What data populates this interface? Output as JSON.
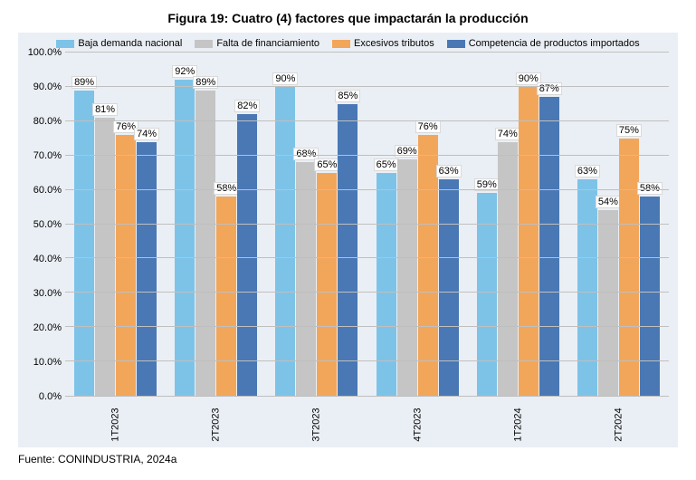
{
  "title": "Figura 19: Cuatro (4) factores que impactarán la producción",
  "title_fontsize": 14,
  "source": "Fuente: CONINDUSTRIA, 2024a",
  "chart": {
    "type": "bar",
    "background_color": "#eaeff5",
    "grid_color": "#bfbfbf",
    "axis_fontsize": 11,
    "legend_fontsize": 11,
    "label_fontsize": 11,
    "ylim": [
      0,
      100
    ],
    "ytick_step": 10,
    "yticks": [
      "0.0%",
      "10.0%",
      "20.0%",
      "30.0%",
      "40.0%",
      "50.0%",
      "60.0%",
      "70.0%",
      "80.0%",
      "90.0%",
      "100.0%"
    ],
    "categories": [
      "1T2023",
      "2T2023",
      "3T2023",
      "4T2023",
      "1T2024",
      "2T2024"
    ],
    "series": [
      {
        "name": "Baja demanda nacional",
        "color": "#7dc3e8",
        "values": [
          89,
          92,
          90,
          65,
          59,
          63
        ],
        "labels": [
          "89%",
          "92%",
          "90%",
          "65%",
          "59%",
          "63%"
        ]
      },
      {
        "name": "Falta de financiamiento",
        "color": "#c5c5c5",
        "values": [
          81,
          89,
          68,
          69,
          74,
          54
        ],
        "labels": [
          "81%",
          "89%",
          "68%",
          "69%",
          "74%",
          "54%"
        ]
      },
      {
        "name": "Excesivos tributos",
        "color": "#f2a65a",
        "values": [
          76,
          58,
          65,
          76,
          90,
          75
        ],
        "labels": [
          "76%",
          "58%",
          "65%",
          "76%",
          "90%",
          "75%"
        ]
      },
      {
        "name": "Competencia de productos importados",
        "color": "#4a78b5",
        "values": [
          74,
          82,
          85,
          63,
          87,
          58
        ],
        "labels": [
          "74%",
          "82%",
          "85%",
          "63%",
          "87%",
          "58%"
        ]
      }
    ],
    "label_box_bg": "#ffffff",
    "label_box_border": "#d9d9d9"
  }
}
